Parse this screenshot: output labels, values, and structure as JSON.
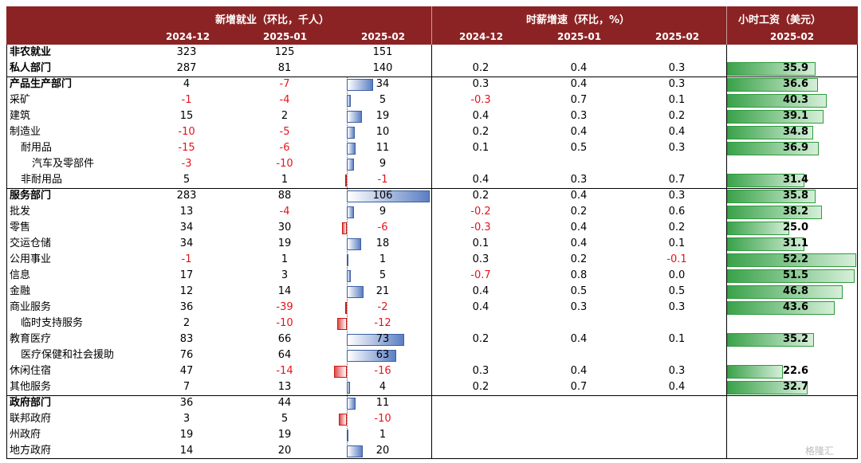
{
  "header": {
    "group_jobs": "新增就业（环比，千人）",
    "group_wage_growth": "时薪增速（环比，%）",
    "group_wage": "小时工资（美元）",
    "jobs_cols": [
      "2024-12",
      "2025-01",
      "2025-02"
    ],
    "wage_growth_cols": [
      "2024-12",
      "2025-01",
      "2025-02"
    ],
    "wage_col": "2025-02"
  },
  "chart_data": {
    "type": "table",
    "bar_scale": {
      "jobs_max_abs": 106,
      "wage_max": 52.2
    },
    "rows": [
      {
        "label": "非农就业",
        "bold": true,
        "indent": 0,
        "jobs": [
          "323",
          "125",
          "151"
        ],
        "jobs_val": 151,
        "bar": false,
        "growth": [
          "",
          "",
          ""
        ],
        "wage": "",
        "wage_val": null
      },
      {
        "label": "私人部门",
        "bold": true,
        "indent": 0,
        "jobs": [
          "287",
          "81",
          "140"
        ],
        "jobs_val": 140,
        "bar": false,
        "growth": [
          "0.2",
          "0.4",
          "0.3"
        ],
        "wage": "35.9",
        "wage_val": 35.9
      },
      {
        "label": "产品生产部门",
        "bold": true,
        "indent": 0,
        "jobs": [
          "4",
          "-7",
          "34"
        ],
        "jobs_val": 34,
        "bar": true,
        "growth": [
          "0.3",
          "0.4",
          "0.3"
        ],
        "wage": "36.6",
        "wage_val": 36.6
      },
      {
        "label": "采矿",
        "bold": false,
        "indent": 0,
        "jobs": [
          "-1",
          "-4",
          "5"
        ],
        "jobs_val": 5,
        "bar": true,
        "growth": [
          "-0.3",
          "0.7",
          "0.1"
        ],
        "wage": "40.3",
        "wage_val": 40.3
      },
      {
        "label": "建筑",
        "bold": false,
        "indent": 0,
        "jobs": [
          "15",
          "2",
          "19"
        ],
        "jobs_val": 19,
        "bar": true,
        "growth": [
          "0.4",
          "0.3",
          "0.2"
        ],
        "wage": "39.1",
        "wage_val": 39.1
      },
      {
        "label": "制造业",
        "bold": false,
        "indent": 0,
        "jobs": [
          "-10",
          "-5",
          "10"
        ],
        "jobs_val": 10,
        "bar": true,
        "growth": [
          "0.2",
          "0.4",
          "0.4"
        ],
        "wage": "34.8",
        "wage_val": 34.8
      },
      {
        "label": "耐用品",
        "bold": false,
        "indent": 1,
        "jobs": [
          "-15",
          "-6",
          "11"
        ],
        "jobs_val": 11,
        "bar": true,
        "growth": [
          "0.1",
          "0.5",
          "0.3"
        ],
        "wage": "36.9",
        "wage_val": 36.9
      },
      {
        "label": "汽车及零部件",
        "bold": false,
        "indent": 2,
        "jobs": [
          "-3",
          "-10",
          "9"
        ],
        "jobs_val": 9,
        "bar": true,
        "growth": [
          "",
          "",
          ""
        ],
        "wage": "",
        "wage_val": null
      },
      {
        "label": "非耐用品",
        "bold": false,
        "indent": 1,
        "jobs": [
          "5",
          "1",
          "-1"
        ],
        "jobs_val": -1,
        "bar": true,
        "growth": [
          "0.4",
          "0.3",
          "0.7"
        ],
        "wage": "31.4",
        "wage_val": 31.4
      },
      {
        "label": "服务部门",
        "bold": true,
        "indent": 0,
        "jobs": [
          "283",
          "88",
          "106"
        ],
        "jobs_val": 106,
        "bar": true,
        "growth": [
          "0.2",
          "0.4",
          "0.3"
        ],
        "wage": "35.8",
        "wage_val": 35.8
      },
      {
        "label": "批发",
        "bold": false,
        "indent": 0,
        "jobs": [
          "13",
          "-4",
          "9"
        ],
        "jobs_val": 9,
        "bar": true,
        "growth": [
          "-0.2",
          "0.2",
          "0.6"
        ],
        "wage": "38.2",
        "wage_val": 38.2
      },
      {
        "label": "零售",
        "bold": false,
        "indent": 0,
        "jobs": [
          "34",
          "30",
          "-6"
        ],
        "jobs_val": -6,
        "bar": true,
        "growth": [
          "-0.3",
          "0.4",
          "0.2"
        ],
        "wage": "25.0",
        "wage_val": 25.0
      },
      {
        "label": "交运仓储",
        "bold": false,
        "indent": 0,
        "jobs": [
          "34",
          "19",
          "18"
        ],
        "jobs_val": 18,
        "bar": true,
        "growth": [
          "0.1",
          "0.4",
          "0.1"
        ],
        "wage": "31.1",
        "wage_val": 31.1
      },
      {
        "label": "公用事业",
        "bold": false,
        "indent": 0,
        "jobs": [
          "-1",
          "1",
          "1"
        ],
        "jobs_val": 1,
        "bar": true,
        "growth": [
          "0.3",
          "0.2",
          "-0.1"
        ],
        "wage": "52.2",
        "wage_val": 52.2
      },
      {
        "label": "信息",
        "bold": false,
        "indent": 0,
        "jobs": [
          "17",
          "3",
          "5"
        ],
        "jobs_val": 5,
        "bar": true,
        "growth": [
          "-0.7",
          "0.8",
          "0.0"
        ],
        "wage": "51.5",
        "wage_val": 51.5
      },
      {
        "label": "金融",
        "bold": false,
        "indent": 0,
        "jobs": [
          "12",
          "14",
          "21"
        ],
        "jobs_val": 21,
        "bar": true,
        "growth": [
          "0.4",
          "0.5",
          "0.5"
        ],
        "wage": "46.8",
        "wage_val": 46.8
      },
      {
        "label": "商业服务",
        "bold": false,
        "indent": 0,
        "jobs": [
          "36",
          "-39",
          "-2"
        ],
        "jobs_val": -2,
        "bar": true,
        "growth": [
          "0.4",
          "0.3",
          "0.3"
        ],
        "wage": "43.6",
        "wage_val": 43.6
      },
      {
        "label": "临时支持服务",
        "bold": false,
        "indent": 1,
        "jobs": [
          "2",
          "-10",
          "-12"
        ],
        "jobs_val": -12,
        "bar": true,
        "growth": [
          "",
          "",
          ""
        ],
        "wage": "",
        "wage_val": null
      },
      {
        "label": "教育医疗",
        "bold": false,
        "indent": 0,
        "jobs": [
          "83",
          "66",
          "73"
        ],
        "jobs_val": 73,
        "bar": true,
        "growth": [
          "0.2",
          "0.4",
          "0.1"
        ],
        "wage": "35.2",
        "wage_val": 35.2
      },
      {
        "label": "医疗保健和社会援助",
        "bold": false,
        "indent": 1,
        "jobs": [
          "76",
          "64",
          "63"
        ],
        "jobs_val": 63,
        "bar": true,
        "growth": [
          "",
          "",
          ""
        ],
        "wage": "",
        "wage_val": null
      },
      {
        "label": "休闲住宿",
        "bold": false,
        "indent": 0,
        "jobs": [
          "47",
          "-14",
          "-16"
        ],
        "jobs_val": -16,
        "bar": true,
        "growth": [
          "0.3",
          "0.4",
          "0.3"
        ],
        "wage": "22.6",
        "wage_val": 22.6
      },
      {
        "label": "其他服务",
        "bold": false,
        "indent": 0,
        "jobs": [
          "7",
          "13",
          "4"
        ],
        "jobs_val": 4,
        "bar": true,
        "growth": [
          "0.2",
          "0.7",
          "0.4"
        ],
        "wage": "32.7",
        "wage_val": 32.7
      },
      {
        "label": "政府部门",
        "bold": true,
        "indent": 0,
        "jobs": [
          "36",
          "44",
          "11"
        ],
        "jobs_val": 11,
        "bar": true,
        "growth": [
          "",
          "",
          ""
        ],
        "wage": "",
        "wage_val": null
      },
      {
        "label": "联邦政府",
        "bold": false,
        "indent": 0,
        "jobs": [
          "3",
          "5",
          "-10"
        ],
        "jobs_val": -10,
        "bar": true,
        "growth": [
          "",
          "",
          ""
        ],
        "wage": "",
        "wage_val": null
      },
      {
        "label": "州政府",
        "bold": false,
        "indent": 0,
        "jobs": [
          "19",
          "19",
          "1"
        ],
        "jobs_val": 1,
        "bar": true,
        "growth": [
          "",
          "",
          ""
        ],
        "wage": "",
        "wage_val": null
      },
      {
        "label": "地方政府",
        "bold": false,
        "indent": 0,
        "jobs": [
          "14",
          "20",
          "20"
        ],
        "jobs_val": 20,
        "bar": true,
        "growth": [
          "",
          "",
          ""
        ],
        "wage": "",
        "wage_val": null
      }
    ]
  },
  "watermark": "格隆汇"
}
